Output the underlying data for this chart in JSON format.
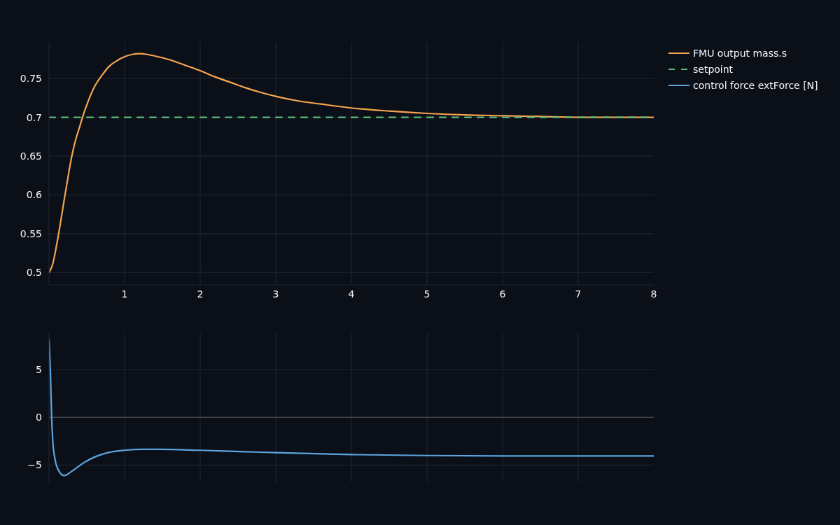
{
  "chart_data": [
    {
      "type": "line",
      "series": [
        {
          "name": "FMU output mass.s",
          "color": "#f5a54f",
          "x": [
            0,
            0.05,
            0.1,
            0.15,
            0.2,
            0.25,
            0.3,
            0.35,
            0.4,
            0.45,
            0.5,
            0.6,
            0.7,
            0.8,
            0.9,
            1.0,
            1.1,
            1.2,
            1.3,
            1.4,
            1.6,
            1.8,
            2.0,
            2.2,
            2.4,
            2.6,
            2.8,
            3.0,
            3.3,
            3.6,
            4.0,
            4.5,
            5.0,
            5.5,
            6.0,
            6.5,
            7.0,
            7.5,
            8.0
          ],
          "values": [
            0.5,
            0.511,
            0.535,
            0.563,
            0.593,
            0.622,
            0.649,
            0.67,
            0.686,
            0.702,
            0.716,
            0.739,
            0.754,
            0.766,
            0.773,
            0.778,
            0.781,
            0.782,
            0.781,
            0.779,
            0.774,
            0.767,
            0.76,
            0.752,
            0.745,
            0.738,
            0.732,
            0.727,
            0.721,
            0.717,
            0.712,
            0.708,
            0.705,
            0.703,
            0.702,
            0.701,
            0.7,
            0.7,
            0.7
          ]
        },
        {
          "name": "setpoint",
          "color": "#5bba7d",
          "x": [
            0,
            8
          ],
          "values": [
            0.7,
            0.7
          ],
          "line_style": "dashed"
        }
      ],
      "xlim": [
        0,
        8
      ],
      "xticks": [
        1,
        2,
        3,
        4,
        5,
        6,
        7,
        8
      ],
      "ylim": [
        0.484,
        0.797
      ],
      "yticks": [
        0.5,
        0.55,
        0.6,
        0.65,
        0.7,
        0.75
      ],
      "grid": true,
      "legend": "top right"
    },
    {
      "type": "line",
      "series": [
        {
          "name": "control force extForce [N]",
          "color": "#5aa5e0",
          "x": [
            0,
            0.02,
            0.035,
            0.05,
            0.08,
            0.13,
            0.2,
            0.31,
            0.47,
            0.62,
            0.78,
            1.0,
            1.25,
            1.45,
            2.0,
            2.6,
            3.0,
            3.7,
            4.0,
            5.0,
            6.0,
            7.0,
            8.0
          ],
          "values": [
            8.1,
            4.4,
            0,
            -2.5,
            -4.4,
            -5.6,
            -6.1,
            -5.6,
            -4.7,
            -4.1,
            -3.7,
            -3.45,
            -3.35,
            -3.35,
            -3.45,
            -3.6,
            -3.7,
            -3.85,
            -3.9,
            -4.0,
            -4.05,
            -4.05,
            -4.05
          ]
        }
      ],
      "xlim": [
        0,
        8
      ],
      "xticks": [
        1,
        2,
        3,
        4,
        5,
        6,
        7,
        8
      ],
      "ylim": [
        -6.8,
        8.8
      ],
      "yticks": [
        {
          "value": -5,
          "label": "−5"
        },
        0,
        5
      ],
      "grid": true,
      "tick_labels": "y",
      "ref_lines": [
        {
          "axis": "y",
          "value": 0,
          "color": "#444444"
        }
      ],
      "legend": "top right"
    }
  ]
}
